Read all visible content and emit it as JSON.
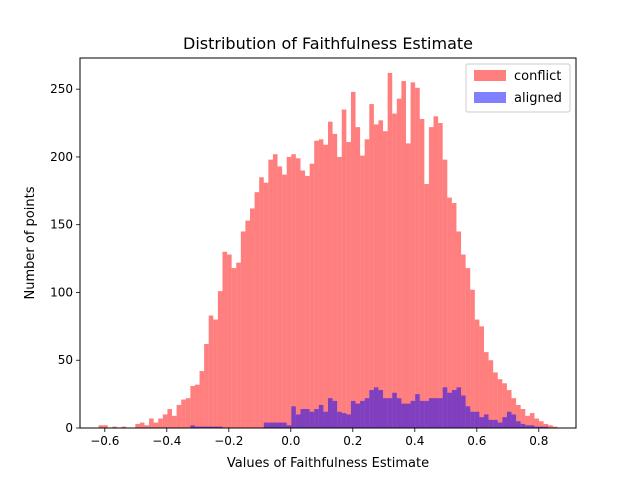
{
  "chart_data": {
    "type": "histogram",
    "title": "Distribution of Faithfulness Estimate",
    "xlabel": "Values of Faithfulness Estimate",
    "ylabel": "Number of points",
    "xlim": [
      -0.68,
      0.92
    ],
    "ylim": [
      0,
      273
    ],
    "xticks": [
      -0.6,
      -0.4,
      -0.2,
      0.0,
      0.2,
      0.4,
      0.6,
      0.8
    ],
    "xtick_labels": [
      "−0.6",
      "−0.4",
      "−0.2",
      "0.0",
      "0.2",
      "0.4",
      "0.6",
      "0.8"
    ],
    "yticks": [
      0,
      50,
      100,
      150,
      200,
      250
    ],
    "ytick_labels": [
      "0",
      "50",
      "100",
      "150",
      "200",
      "250"
    ],
    "bins": 100,
    "legend_position": "top-right",
    "series": [
      {
        "name": "conflict",
        "color": "#ff0000",
        "alpha": 0.5,
        "bin_start": -0.62,
        "bin_width": 0.0148,
        "counts": [
          2,
          2,
          0,
          1,
          0,
          1,
          0,
          0,
          3,
          4,
          2,
          7,
          4,
          7,
          10,
          14,
          9,
          17,
          21,
          22,
          31,
          32,
          42,
          62,
          83,
          80,
          101,
          130,
          128,
          118,
          122,
          145,
          153,
          162,
          174,
          185,
          181,
          198,
          202,
          193,
          187,
          200,
          202,
          199,
          190,
          186,
          195,
          212,
          213,
          209,
          226,
          217,
          200,
          235,
          211,
          248,
          222,
          201,
          213,
          239,
          224,
          227,
          219,
          262,
          232,
          243,
          256,
          210,
          255,
          251,
          228,
          180,
          222,
          230,
          225,
          198,
          170,
          166,
          145,
          128,
          118,
          102,
          80,
          75,
          56,
          50,
          41,
          36,
          33,
          28,
          22,
          17,
          14,
          9,
          11,
          7,
          5,
          3,
          2,
          1
        ]
      },
      {
        "name": "aligned",
        "color": "#0000ff",
        "alpha": 0.5,
        "bin_start": -0.62,
        "bin_width": 0.0148,
        "counts": [
          0,
          0,
          0,
          0,
          0,
          0,
          0,
          0,
          0,
          0,
          0,
          0,
          0,
          0,
          0,
          0,
          0,
          0,
          0,
          0,
          2,
          1,
          1,
          1,
          1,
          1,
          1,
          0,
          0,
          0,
          0,
          0,
          0,
          0,
          0,
          0,
          4,
          4,
          4,
          4,
          4,
          2,
          16,
          10,
          14,
          14,
          12,
          14,
          17,
          12,
          22,
          20,
          12,
          11,
          10,
          20,
          18,
          20,
          22,
          28,
          30,
          28,
          22,
          22,
          26,
          22,
          18,
          18,
          20,
          25,
          20,
          20,
          22,
          22,
          22,
          30,
          26,
          28,
          30,
          24,
          16,
          12,
          12,
          8,
          10,
          6,
          6,
          4,
          8,
          12,
          10,
          5,
          3,
          2,
          2,
          1,
          1,
          1,
          0,
          0
        ]
      }
    ]
  }
}
